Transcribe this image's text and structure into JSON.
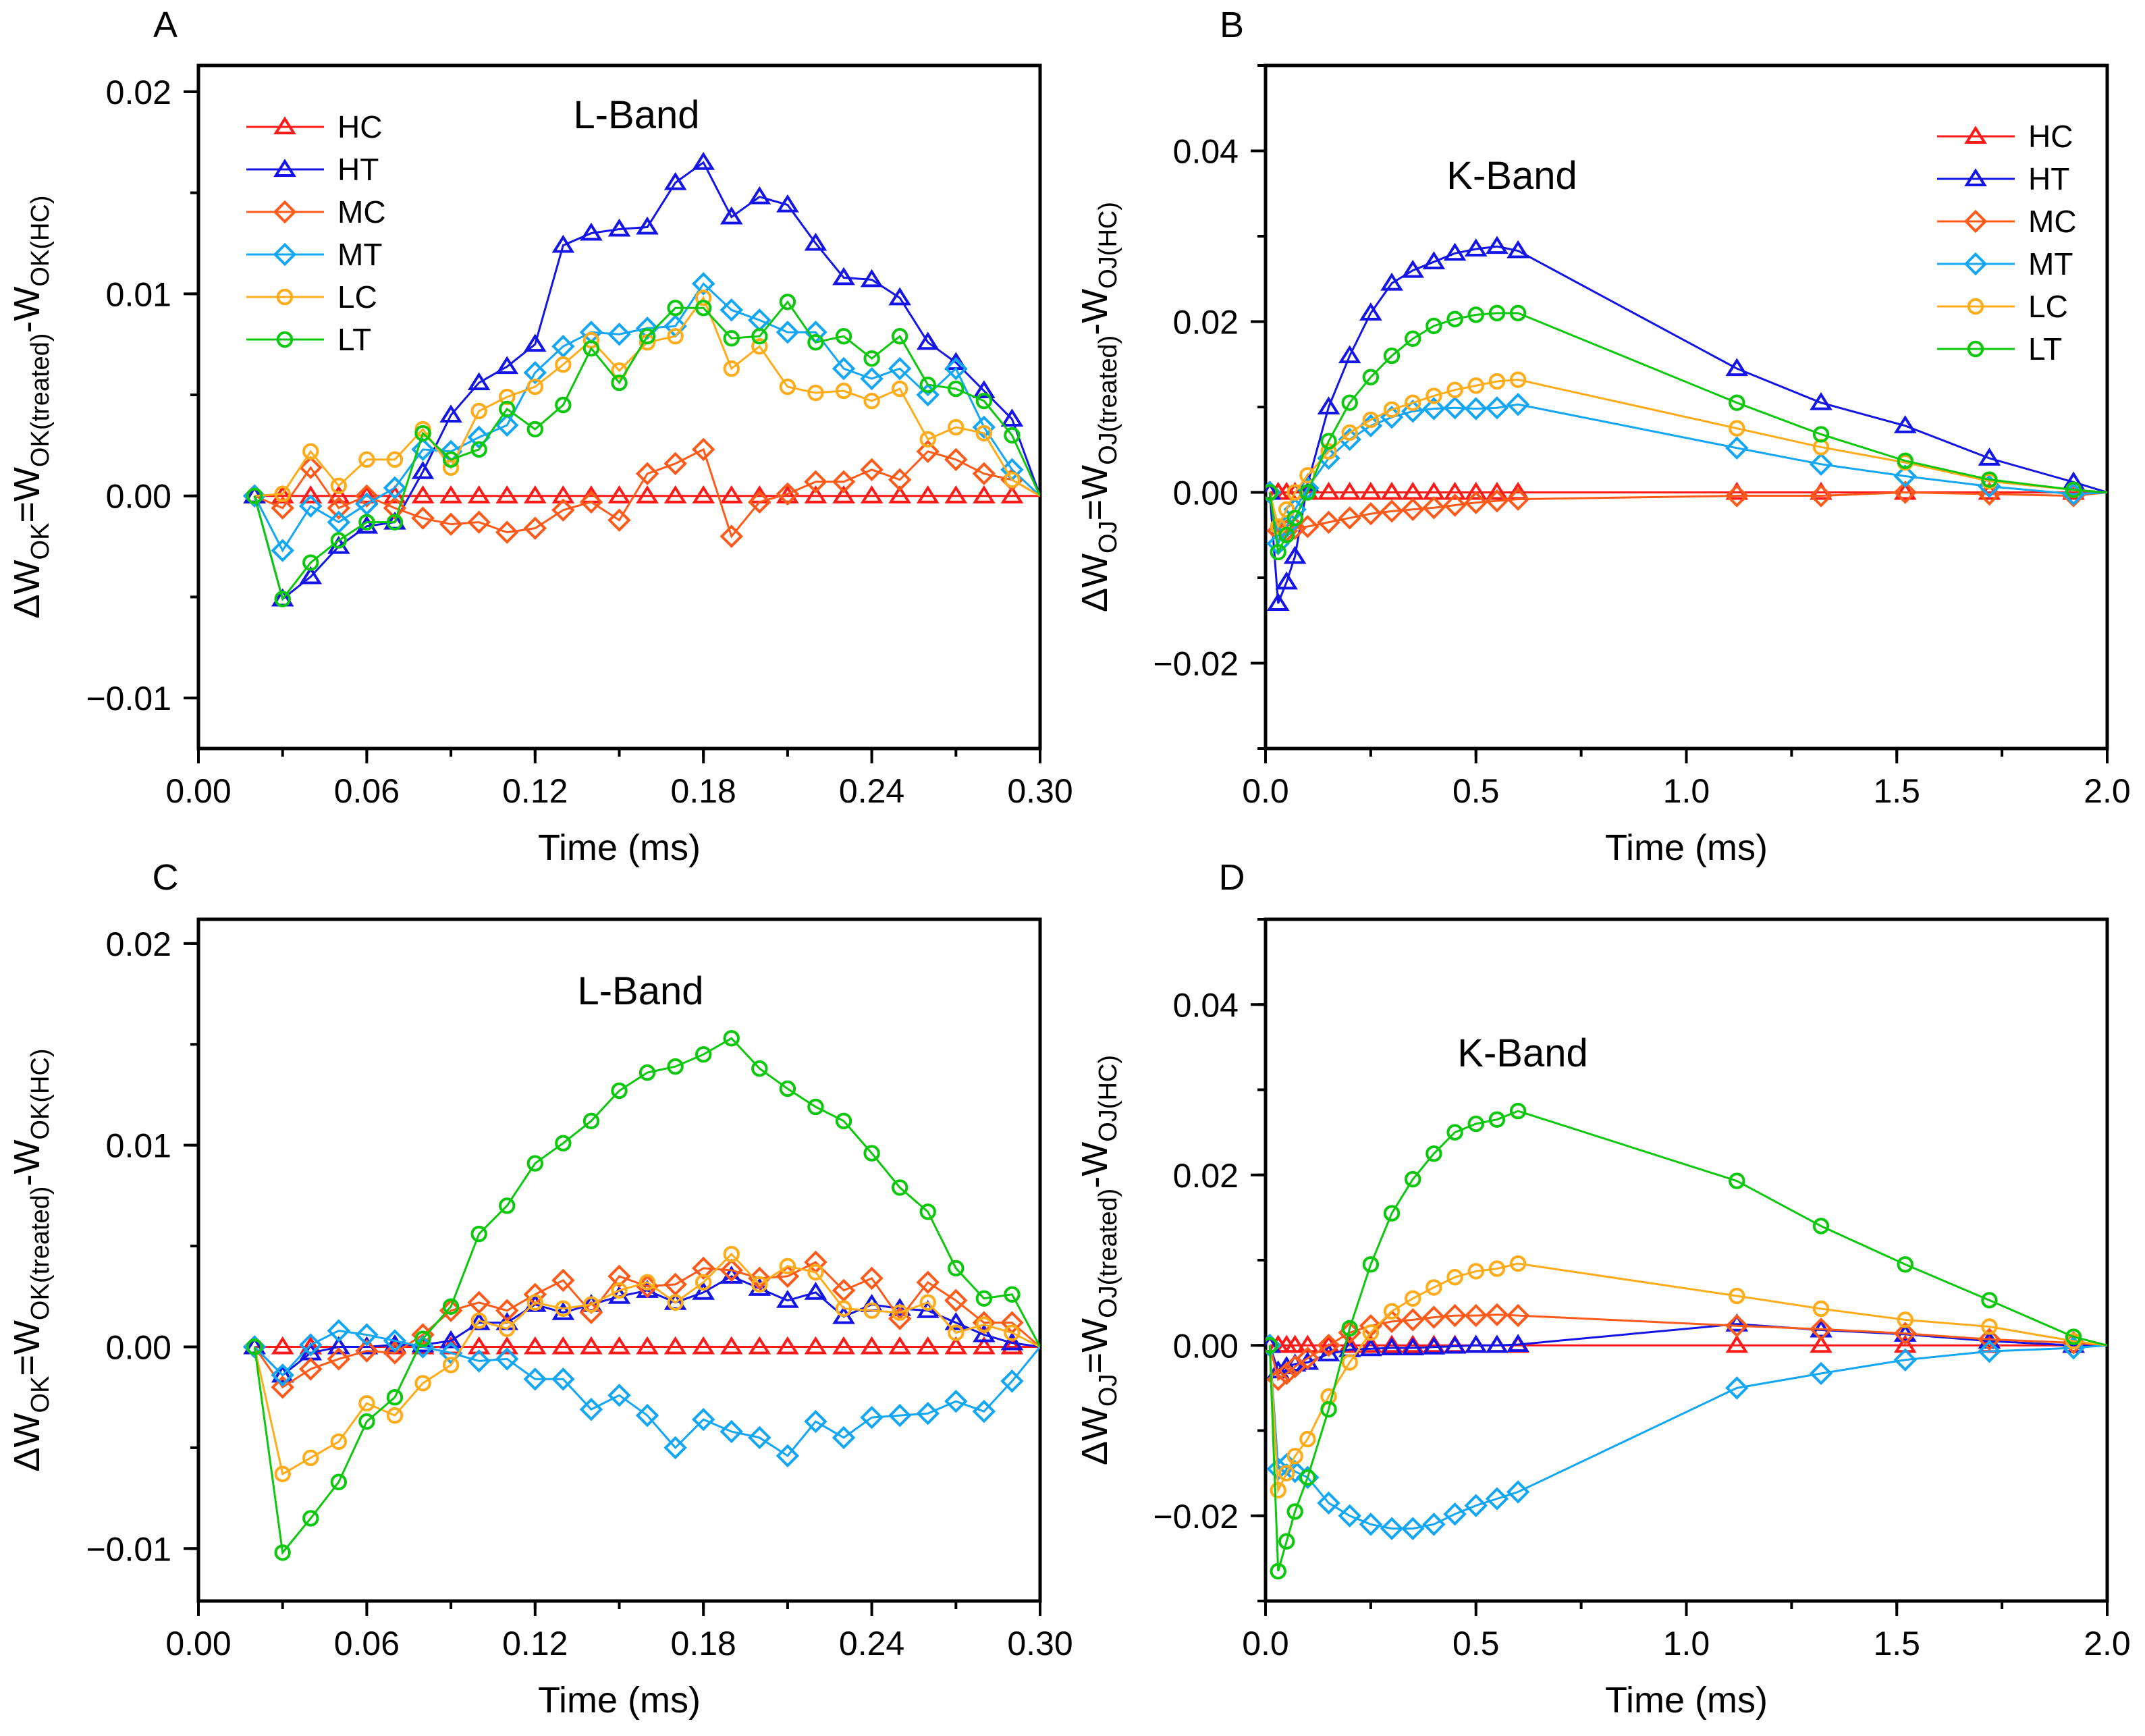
{
  "colors": {
    "HC": "#ff1a1a",
    "HT": "#1414e6",
    "MC": "#ff5a1a",
    "MT": "#12a6f5",
    "LC": "#ffab1a",
    "LT": "#0cc80c"
  },
  "markers": {
    "HC": "triangle",
    "HT": "triangle",
    "MC": "diamond",
    "MT": "diamond",
    "LC": "circle",
    "LT": "circle"
  },
  "chart_data": [
    {
      "panel": "A",
      "type": "line",
      "title": "L-Band",
      "xlabel": "Time (ms)",
      "ylabel": [
        [
          "ΔW",
          false
        ],
        [
          "OK",
          true
        ],
        [
          "=W",
          false
        ],
        [
          "OK(treated)",
          true
        ],
        [
          "-W",
          false
        ],
        [
          "OK(HC)",
          true
        ]
      ],
      "xlim": [
        0,
        0.3
      ],
      "ylim": [
        -0.0125,
        0.0213
      ],
      "xticks": [
        "0.00",
        "0.06",
        "0.12",
        "0.18",
        "0.24",
        "0.30"
      ],
      "xtick_values": [
        0,
        0.06,
        0.12,
        0.18,
        0.24,
        0.3
      ],
      "xminor": 0.03,
      "yticks": [
        "−0.01",
        "0.00",
        "0.01",
        "0.02"
      ],
      "ytick_values": [
        -0.01,
        0,
        0.01,
        0.02
      ],
      "yminor": 0.005,
      "legend": "top-left",
      "x": [
        0.02,
        0.03,
        0.04,
        0.05,
        0.06,
        0.07,
        0.08,
        0.09,
        0.1,
        0.11,
        0.12,
        0.13,
        0.14,
        0.15,
        0.16,
        0.17,
        0.18,
        0.19,
        0.2,
        0.21,
        0.22,
        0.23,
        0.24,
        0.25,
        0.26,
        0.27,
        0.28,
        0.29,
        0.3
      ],
      "series": [
        {
          "name": "HC",
          "values": [
            0,
            0,
            0,
            0,
            0,
            0,
            0,
            0,
            0,
            0,
            0,
            0,
            0,
            0,
            0,
            0,
            0,
            0,
            0,
            0,
            0,
            0,
            0,
            0,
            0,
            0,
            0,
            0,
            0
          ]
        },
        {
          "name": "HT",
          "values": [
            0,
            -0.0051,
            -0.004,
            -0.0025,
            -0.0015,
            -0.0013,
            0.0012,
            0.004,
            0.0056,
            0.0064,
            0.0075,
            0.0124,
            0.013,
            0.0132,
            0.0133,
            0.0155,
            0.0165,
            0.0138,
            0.0148,
            0.0144,
            0.0125,
            0.0108,
            0.0107,
            0.0098,
            0.0076,
            0.0066,
            0.0052,
            0.0038,
            0
          ]
        },
        {
          "name": "MC",
          "values": [
            0,
            -0.0006,
            0.0014,
            -0.0006,
            0,
            -0.0006,
            -0.0011,
            -0.0014,
            -0.0013,
            -0.0018,
            -0.0016,
            -0.0007,
            -0.0003,
            -0.0012,
            0.0011,
            0.0016,
            0.0023,
            -0.002,
            -0.0003,
            0.0001,
            0.0007,
            0.0007,
            0.0013,
            0.0008,
            0.0022,
            0.0018,
            0.0011,
            0.0008,
            0
          ]
        },
        {
          "name": "MT",
          "values": [
            0,
            -0.0027,
            -0.0005,
            -0.0013,
            -0.0004,
            0.0004,
            0.0023,
            0.0022,
            0.0029,
            0.0035,
            0.0061,
            0.0074,
            0.0081,
            0.008,
            0.0083,
            0.0084,
            0.0105,
            0.0092,
            0.0087,
            0.0081,
            0.0081,
            0.0063,
            0.0058,
            0.0063,
            0.005,
            0.0063,
            0.0034,
            0.0013,
            0
          ]
        },
        {
          "name": "LC",
          "values": [
            0,
            0.0001,
            0.0022,
            0.0005,
            0.0018,
            0.0018,
            0.0033,
            0.0014,
            0.0042,
            0.0049,
            0.0054,
            0.0065,
            0.0077,
            0.0062,
            0.0076,
            0.0079,
            0.0098,
            0.0063,
            0.0074,
            0.0054,
            0.0051,
            0.0052,
            0.0047,
            0.0053,
            0.0028,
            0.0034,
            0.0031,
            0.0008,
            0
          ]
        },
        {
          "name": "LT",
          "values": [
            0,
            -0.0051,
            -0.0033,
            -0.0022,
            -0.0013,
            -0.0013,
            0.0031,
            0.0018,
            0.0023,
            0.0043,
            0.0033,
            0.0045,
            0.0073,
            0.0056,
            0.0079,
            0.0093,
            0.0093,
            0.0078,
            0.0079,
            0.0096,
            0.0076,
            0.0079,
            0.0068,
            0.0079,
            0.0055,
            0.0053,
            0.0047,
            0.003,
            0
          ]
        }
      ]
    },
    {
      "panel": "B",
      "type": "line",
      "title": "K-Band",
      "xlabel": "Time (ms)",
      "ylabel": [
        [
          "ΔW",
          false
        ],
        [
          "OJ",
          true
        ],
        [
          "=W",
          false
        ],
        [
          "OJ(treated)",
          true
        ],
        [
          "-W",
          false
        ],
        [
          "OJ(HC)",
          true
        ]
      ],
      "xlim": [
        0,
        2.0
      ],
      "ylim": [
        -0.03,
        0.05
      ],
      "xticks": [
        "0.0",
        "0.5",
        "1.0",
        "1.5",
        "2.0"
      ],
      "xtick_values": [
        0,
        0.5,
        1.0,
        1.5,
        2.0
      ],
      "xminor": 0.25,
      "yticks": [
        "−0.02",
        "0.00",
        "0.02",
        "0.04"
      ],
      "ytick_values": [
        -0.02,
        0,
        0.02,
        0.04
      ],
      "yminor": 0.01,
      "legend": "top-right",
      "x": [
        0.01,
        0.03,
        0.05,
        0.07,
        0.1,
        0.15,
        0.2,
        0.25,
        0.3,
        0.35,
        0.4,
        0.45,
        0.5,
        0.55,
        0.6,
        1.12,
        1.32,
        1.52,
        1.72,
        1.92,
        2.0
      ],
      "series": [
        {
          "name": "HC",
          "values": [
            0,
            0,
            0,
            0,
            0,
            0,
            0,
            0,
            0,
            0,
            0,
            0,
            0,
            0,
            0,
            0,
            0,
            0,
            0,
            0,
            0
          ]
        },
        {
          "name": "HT",
          "values": [
            0,
            -0.013,
            -0.0105,
            -0.0075,
            0.001,
            0.01,
            0.016,
            0.021,
            0.0245,
            0.026,
            0.027,
            0.028,
            0.0285,
            0.0288,
            0.0283,
            0.0145,
            0.0105,
            0.0078,
            0.004,
            0.0012,
            0
          ]
        },
        {
          "name": "MC",
          "values": [
            0,
            -0.0045,
            -0.0045,
            -0.0042,
            -0.004,
            -0.0035,
            -0.003,
            -0.0025,
            -0.0022,
            -0.002,
            -0.0018,
            -0.0015,
            -0.0012,
            -0.001,
            -0.0008,
            -0.0004,
            -0.0004,
            0,
            -0.0002,
            -0.0004,
            0
          ]
        },
        {
          "name": "MT",
          "values": [
            0,
            -0.006,
            -0.004,
            -0.002,
            0.0005,
            0.004,
            0.0062,
            0.0078,
            0.0088,
            0.0095,
            0.0098,
            0.0099,
            0.0098,
            0.0099,
            0.0103,
            0.0052,
            0.0033,
            0.0019,
            0.0007,
            -0.0002,
            0
          ]
        },
        {
          "name": "LC",
          "values": [
            0,
            -0.004,
            -0.002,
            0,
            0.002,
            0.0048,
            0.007,
            0.0085,
            0.0097,
            0.0105,
            0.0113,
            0.012,
            0.0125,
            0.013,
            0.0132,
            0.0075,
            0.0053,
            0.0035,
            0.0013,
            0.0003,
            0
          ]
        },
        {
          "name": "LT",
          "values": [
            0,
            -0.007,
            -0.005,
            -0.003,
            0,
            0.006,
            0.0105,
            0.0135,
            0.016,
            0.018,
            0.0195,
            0.0203,
            0.0208,
            0.021,
            0.021,
            0.0105,
            0.0068,
            0.0037,
            0.0015,
            0.0003,
            0
          ]
        }
      ]
    },
    {
      "panel": "C",
      "type": "line",
      "title": "L-Band",
      "xlabel": "Time (ms)",
      "ylabel": [
        [
          "ΔW",
          false
        ],
        [
          "OK",
          true
        ],
        [
          "=W",
          false
        ],
        [
          "OK(treated)",
          true
        ],
        [
          "-W",
          false
        ],
        [
          "OK(HC)",
          true
        ]
      ],
      "xlim": [
        0,
        0.3
      ],
      "ylim": [
        -0.0126,
        0.0212
      ],
      "xticks": [
        "0.00",
        "0.06",
        "0.12",
        "0.18",
        "0.24",
        "0.30"
      ],
      "xtick_values": [
        0,
        0.06,
        0.12,
        0.18,
        0.24,
        0.3
      ],
      "xminor": 0.03,
      "yticks": [
        "−0.01",
        "0.00",
        "0.01",
        "0.02"
      ],
      "ytick_values": [
        -0.01,
        0,
        0.01,
        0.02
      ],
      "yminor": 0.005,
      "legend": "none",
      "x": [
        0.02,
        0.03,
        0.04,
        0.05,
        0.06,
        0.07,
        0.08,
        0.09,
        0.1,
        0.11,
        0.12,
        0.13,
        0.14,
        0.15,
        0.16,
        0.17,
        0.18,
        0.19,
        0.2,
        0.21,
        0.22,
        0.23,
        0.24,
        0.25,
        0.26,
        0.27,
        0.28,
        0.29,
        0.3
      ],
      "series": [
        {
          "name": "HC",
          "values": [
            0,
            0,
            0,
            0,
            0,
            0,
            0,
            0,
            0,
            0,
            0,
            0,
            0,
            0,
            0,
            0,
            0,
            0,
            0,
            0,
            0,
            0,
            0,
            0,
            0,
            0,
            0,
            0,
            0
          ]
        },
        {
          "name": "HT",
          "values": [
            0,
            -0.0014,
            -0.0003,
            0,
            0,
            0.0001,
            0.0001,
            0.0003,
            0.0012,
            0.0012,
            0.0021,
            0.0017,
            0.0021,
            0.0025,
            0.0028,
            0.0022,
            0.0027,
            0.0035,
            0.0029,
            0.0023,
            0.0027,
            0.0015,
            0.0021,
            0.0019,
            0.0018,
            0.0012,
            0.0006,
            0.0002,
            0
          ]
        },
        {
          "name": "MC",
          "values": [
            0,
            -0.002,
            -0.0011,
            -0.0006,
            -0.0002,
            -0.0003,
            0.0006,
            0.0018,
            0.0022,
            0.0018,
            0.0026,
            0.0033,
            0.0017,
            0.0035,
            0.003,
            0.0031,
            0.0039,
            0.0038,
            0.0034,
            0.0035,
            0.0042,
            0.0028,
            0.0034,
            0.0014,
            0.0032,
            0.0023,
            0.0012,
            0.0012,
            0
          ]
        },
        {
          "name": "MT",
          "values": [
            0,
            -0.0014,
            0.0001,
            0.0008,
            0.0006,
            0.0003,
            0,
            -0.0003,
            -0.0007,
            -0.0006,
            -0.0016,
            -0.0016,
            -0.0031,
            -0.0024,
            -0.0034,
            -0.005,
            -0.0036,
            -0.0042,
            -0.0045,
            -0.0054,
            -0.0037,
            -0.0045,
            -0.0035,
            -0.0034,
            -0.0033,
            -0.0027,
            -0.0032,
            -0.0017,
            0
          ]
        },
        {
          "name": "LC",
          "values": [
            0,
            -0.0063,
            -0.0055,
            -0.0047,
            -0.0028,
            -0.0034,
            -0.0018,
            -0.0009,
            0.0013,
            0.0009,
            0.0022,
            0.0019,
            0.0021,
            0.0028,
            0.0032,
            0.0022,
            0.0032,
            0.0046,
            0.0031,
            0.004,
            0.0037,
            0.0019,
            0.0018,
            0.0017,
            0.0022,
            0.0007,
            0.0011,
            0.0007,
            0
          ]
        },
        {
          "name": "LT",
          "values": [
            0,
            -0.0102,
            -0.0085,
            -0.0067,
            -0.0037,
            -0.0025,
            0.0004,
            0.002,
            0.0056,
            0.007,
            0.0091,
            0.0101,
            0.0112,
            0.0127,
            0.0136,
            0.0139,
            0.0145,
            0.0153,
            0.0138,
            0.0128,
            0.0119,
            0.0112,
            0.0096,
            0.0079,
            0.0067,
            0.0039,
            0.0024,
            0.0026,
            0
          ]
        }
      ]
    },
    {
      "panel": "D",
      "type": "line",
      "title": "K-Band",
      "xlabel": "Time (ms)",
      "ylabel": [
        [
          "ΔW",
          false
        ],
        [
          "OJ",
          true
        ],
        [
          "=W",
          false
        ],
        [
          "OJ(treated)",
          true
        ],
        [
          "-W",
          false
        ],
        [
          "OJ(HC)",
          true
        ]
      ],
      "xlim": [
        0,
        2.0
      ],
      "ylim": [
        -0.03,
        0.05
      ],
      "xticks": [
        "0.0",
        "0.5",
        "1.0",
        "1.5",
        "2.0"
      ],
      "xtick_values": [
        0,
        0.5,
        1.0,
        1.5,
        2.0
      ],
      "xminor": 0.25,
      "yticks": [
        "−0.02",
        "0.00",
        "0.02",
        "0.04"
      ],
      "ytick_values": [
        -0.02,
        0,
        0.02,
        0.04
      ],
      "yminor": 0.01,
      "legend": "none",
      "x": [
        0.01,
        0.03,
        0.05,
        0.07,
        0.1,
        0.15,
        0.2,
        0.25,
        0.3,
        0.35,
        0.4,
        0.45,
        0.5,
        0.55,
        0.6,
        1.12,
        1.32,
        1.52,
        1.72,
        1.92,
        2.0
      ],
      "series": [
        {
          "name": "HC",
          "values": [
            0,
            0,
            0,
            0,
            0,
            0,
            0,
            0,
            0,
            0,
            0,
            0,
            0,
            0,
            0,
            0,
            0,
            0,
            0,
            0,
            0
          ]
        },
        {
          "name": "HT",
          "values": [
            0,
            -0.003,
            -0.0025,
            -0.0022,
            -0.002,
            -0.001,
            -0.0005,
            -0.0004,
            -0.0003,
            -0.0003,
            -0.0002,
            -0.0001,
            0,
            0,
            0.0001,
            0.0025,
            0.0018,
            0.0013,
            0.0005,
            0,
            0
          ]
        },
        {
          "name": "MC",
          "values": [
            0,
            -0.004,
            -0.0033,
            -0.0025,
            -0.0015,
            0,
            0.0015,
            0.0023,
            0.0028,
            0.003,
            0.0033,
            0.0035,
            0.0035,
            0.0036,
            0.0035,
            0.0023,
            0.0019,
            0.0014,
            0.0007,
            0.0003,
            0
          ]
        },
        {
          "name": "MT",
          "values": [
            0,
            -0.0145,
            -0.014,
            -0.0148,
            -0.0155,
            -0.0185,
            -0.02,
            -0.021,
            -0.0215,
            -0.0215,
            -0.021,
            -0.0198,
            -0.0188,
            -0.018,
            -0.0172,
            -0.005,
            -0.0033,
            -0.0017,
            -0.0007,
            -0.0003,
            0
          ]
        },
        {
          "name": "LC",
          "values": [
            0,
            -0.017,
            -0.015,
            -0.013,
            -0.011,
            -0.006,
            -0.002,
            0.0015,
            0.004,
            0.0055,
            0.0068,
            0.008,
            0.0087,
            0.009,
            0.0096,
            0.0058,
            0.0043,
            0.003,
            0.0022,
            0.0005,
            0
          ]
        },
        {
          "name": "LT",
          "values": [
            0,
            -0.0265,
            -0.023,
            -0.0195,
            -0.0155,
            -0.0075,
            0.002,
            0.0095,
            0.0155,
            0.0195,
            0.0225,
            0.025,
            0.026,
            0.0265,
            0.0275,
            0.0193,
            0.014,
            0.0095,
            0.0053,
            0.001,
            0
          ]
        }
      ]
    }
  ]
}
